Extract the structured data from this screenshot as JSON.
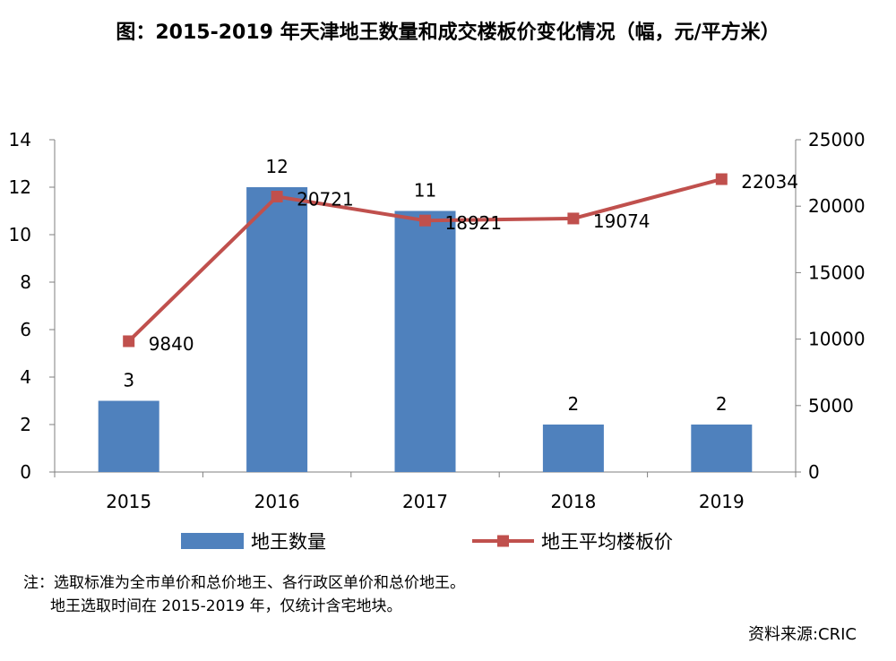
{
  "title": "图：2015-2019 年天津地王数量和成交楼板价变化情况（幅，元/平方米）",
  "note": {
    "line1": "注：选取标准为全市单价和总价地王、各行政区单价和总价地王。",
    "line2": "地王选取时间在 2015-2019 年，仅统计含宅地块。"
  },
  "source": "资料来源:CRIC",
  "chart_data": {
    "type": "bar",
    "categories": [
      "2015",
      "2016",
      "2017",
      "2018",
      "2019"
    ],
    "series": [
      {
        "name": "地王数量",
        "type": "bar",
        "axis": "left",
        "values": [
          3,
          12,
          11,
          2,
          2
        ],
        "color": "#4f81bd"
      },
      {
        "name": "地王平均楼板价",
        "type": "line",
        "axis": "right",
        "values": [
          9840,
          20721,
          18921,
          19074,
          22034
        ],
        "color": "#c0504d"
      }
    ],
    "y_left": {
      "min": 0,
      "max": 14,
      "ticks": [
        "0",
        "2",
        "4",
        "6",
        "8",
        "10",
        "12",
        "14"
      ]
    },
    "y_right": {
      "min": 0,
      "max": 25000,
      "ticks": [
        "0",
        "5000",
        "10000",
        "15000",
        "20000",
        "25000"
      ]
    },
    "grid": false,
    "legend_position": "bottom",
    "data_labels": true
  }
}
